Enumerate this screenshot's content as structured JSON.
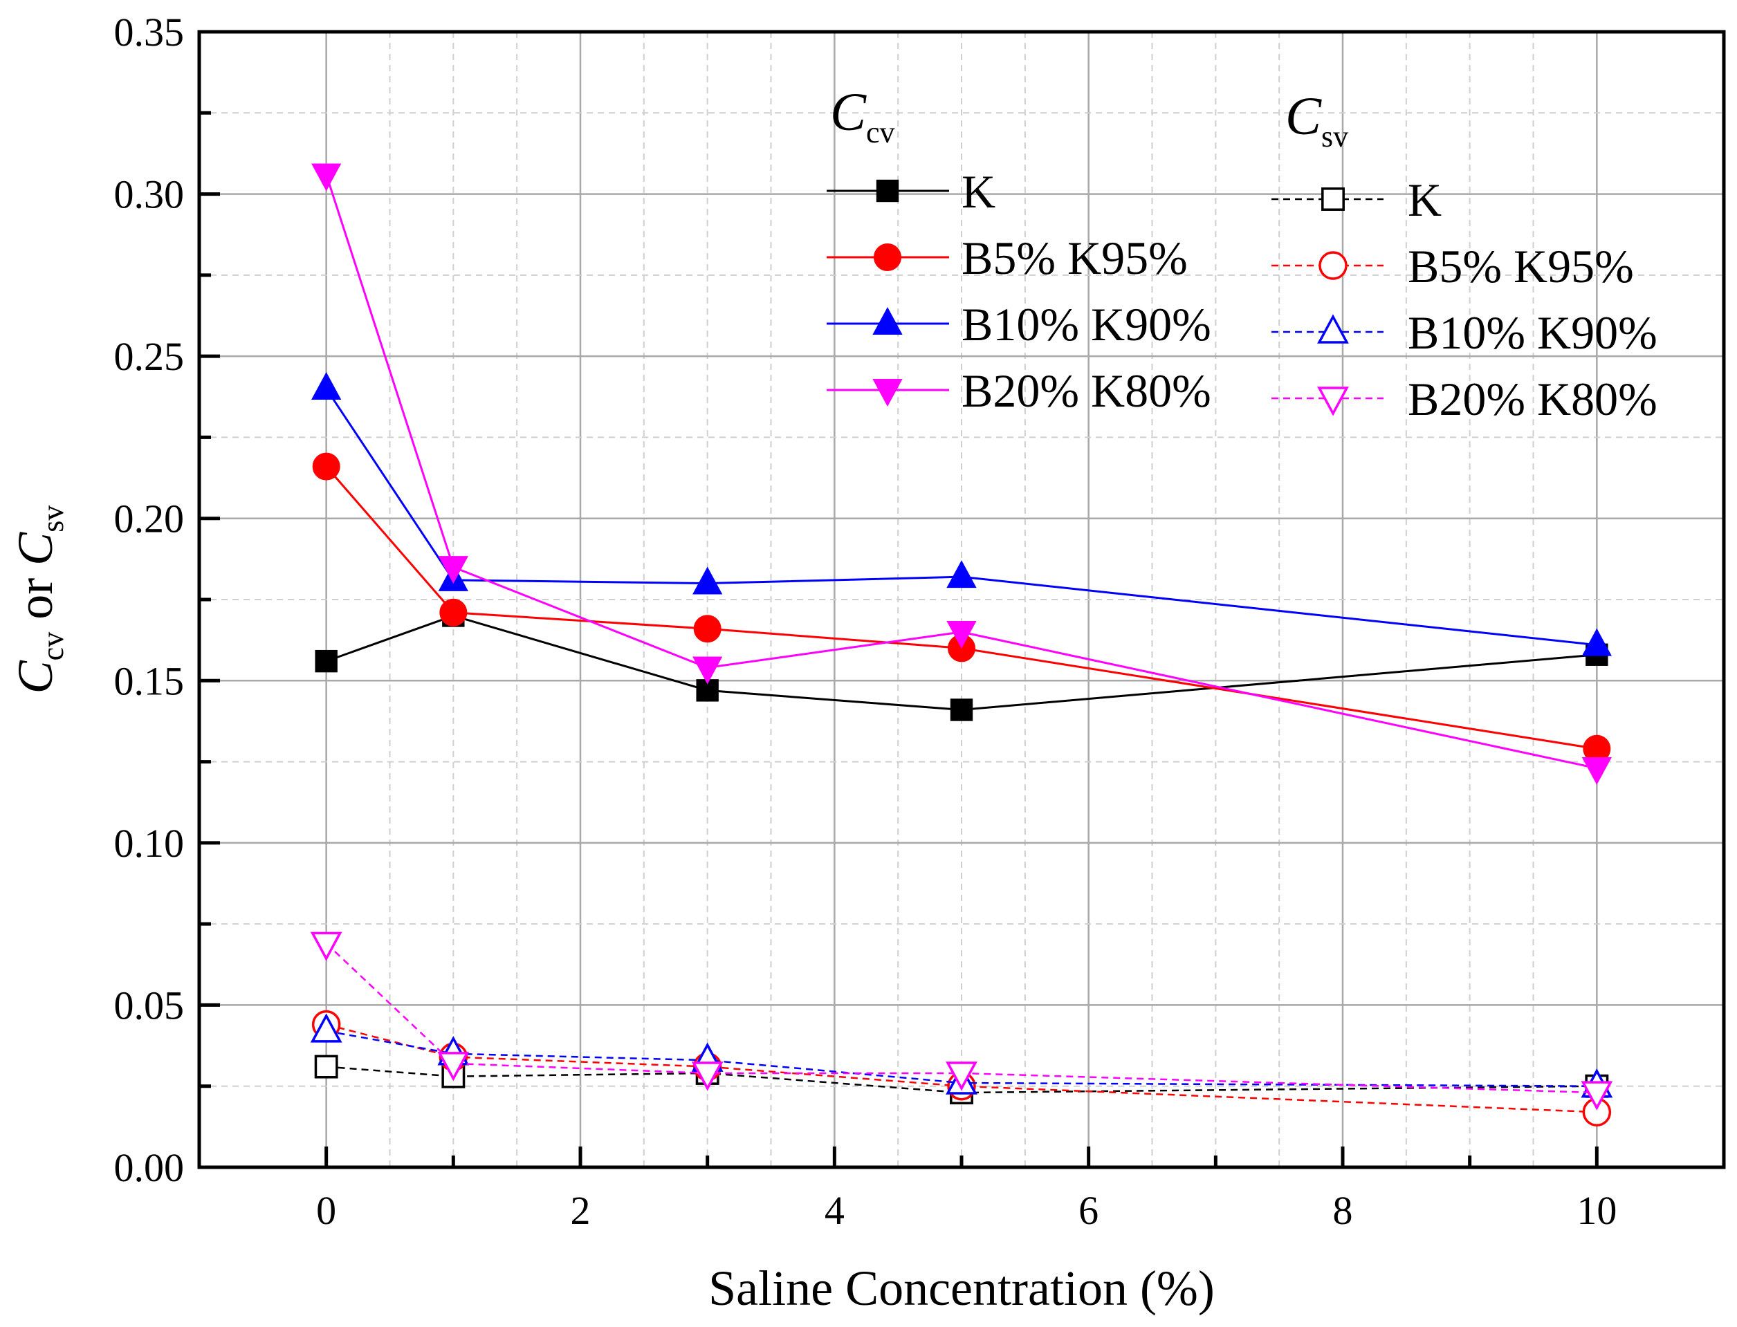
{
  "chart_data": {
    "type": "line",
    "x": [
      0,
      1,
      3,
      5,
      10
    ],
    "xlabel": "Saline Concentration (%)",
    "ylabel": {
      "c1": "C",
      "s1": "cv",
      "mid": " or ",
      "c2": "C",
      "s2": "sv"
    },
    "xlim": [
      -1,
      11
    ],
    "ylim": [
      0,
      0.35
    ],
    "xticks": [
      "0",
      "2",
      "4",
      "6",
      "8",
      "10"
    ],
    "yticks": [
      "0.00",
      "0.05",
      "0.10",
      "0.15",
      "0.20",
      "0.25",
      "0.30",
      "0.35"
    ],
    "grid": true,
    "legend": {
      "placement": "top-right",
      "group_cv": {
        "symbol": "C",
        "subscript": "cv"
      },
      "group_sv": {
        "symbol": "C",
        "subscript": "sv"
      }
    },
    "series": [
      {
        "name": "K",
        "group": "Ccv",
        "color": "#000000",
        "marker": "square",
        "filled": true,
        "dashed": false,
        "values": [
          0.156,
          0.17,
          0.147,
          0.141,
          0.158
        ]
      },
      {
        "name": "B5% K95%",
        "group": "Ccv",
        "color": "#ff0000",
        "marker": "circle",
        "filled": true,
        "dashed": false,
        "values": [
          0.216,
          0.171,
          0.166,
          0.16,
          0.129
        ]
      },
      {
        "name": "B10% K90%",
        "group": "Ccv",
        "color": "#0000ff",
        "marker": "triangle-up",
        "filled": true,
        "dashed": false,
        "values": [
          0.24,
          0.181,
          0.18,
          0.182,
          0.161
        ]
      },
      {
        "name": "B20% K80%",
        "group": "Ccv",
        "color": "#ff00ff",
        "marker": "triangle-down",
        "filled": true,
        "dashed": false,
        "values": [
          0.306,
          0.185,
          0.154,
          0.165,
          0.123
        ]
      },
      {
        "name": "K",
        "group": "Csv",
        "color": "#000000",
        "marker": "square",
        "filled": false,
        "dashed": true,
        "values": [
          0.031,
          0.028,
          0.029,
          0.023,
          0.025
        ]
      },
      {
        "name": "B5% K95%",
        "group": "Csv",
        "color": "#ff0000",
        "marker": "circle",
        "filled": false,
        "dashed": true,
        "values": [
          0.044,
          0.034,
          0.031,
          0.025,
          0.017
        ]
      },
      {
        "name": "B10% K90%",
        "group": "Csv",
        "color": "#0000ff",
        "marker": "triangle-up",
        "filled": false,
        "dashed": true,
        "values": [
          0.042,
          0.035,
          0.033,
          0.026,
          0.025
        ]
      },
      {
        "name": "B20% K80%",
        "group": "Csv",
        "color": "#ff00ff",
        "marker": "triangle-down",
        "filled": false,
        "dashed": true,
        "values": [
          0.069,
          0.032,
          0.029,
          0.029,
          0.023
        ]
      }
    ]
  }
}
